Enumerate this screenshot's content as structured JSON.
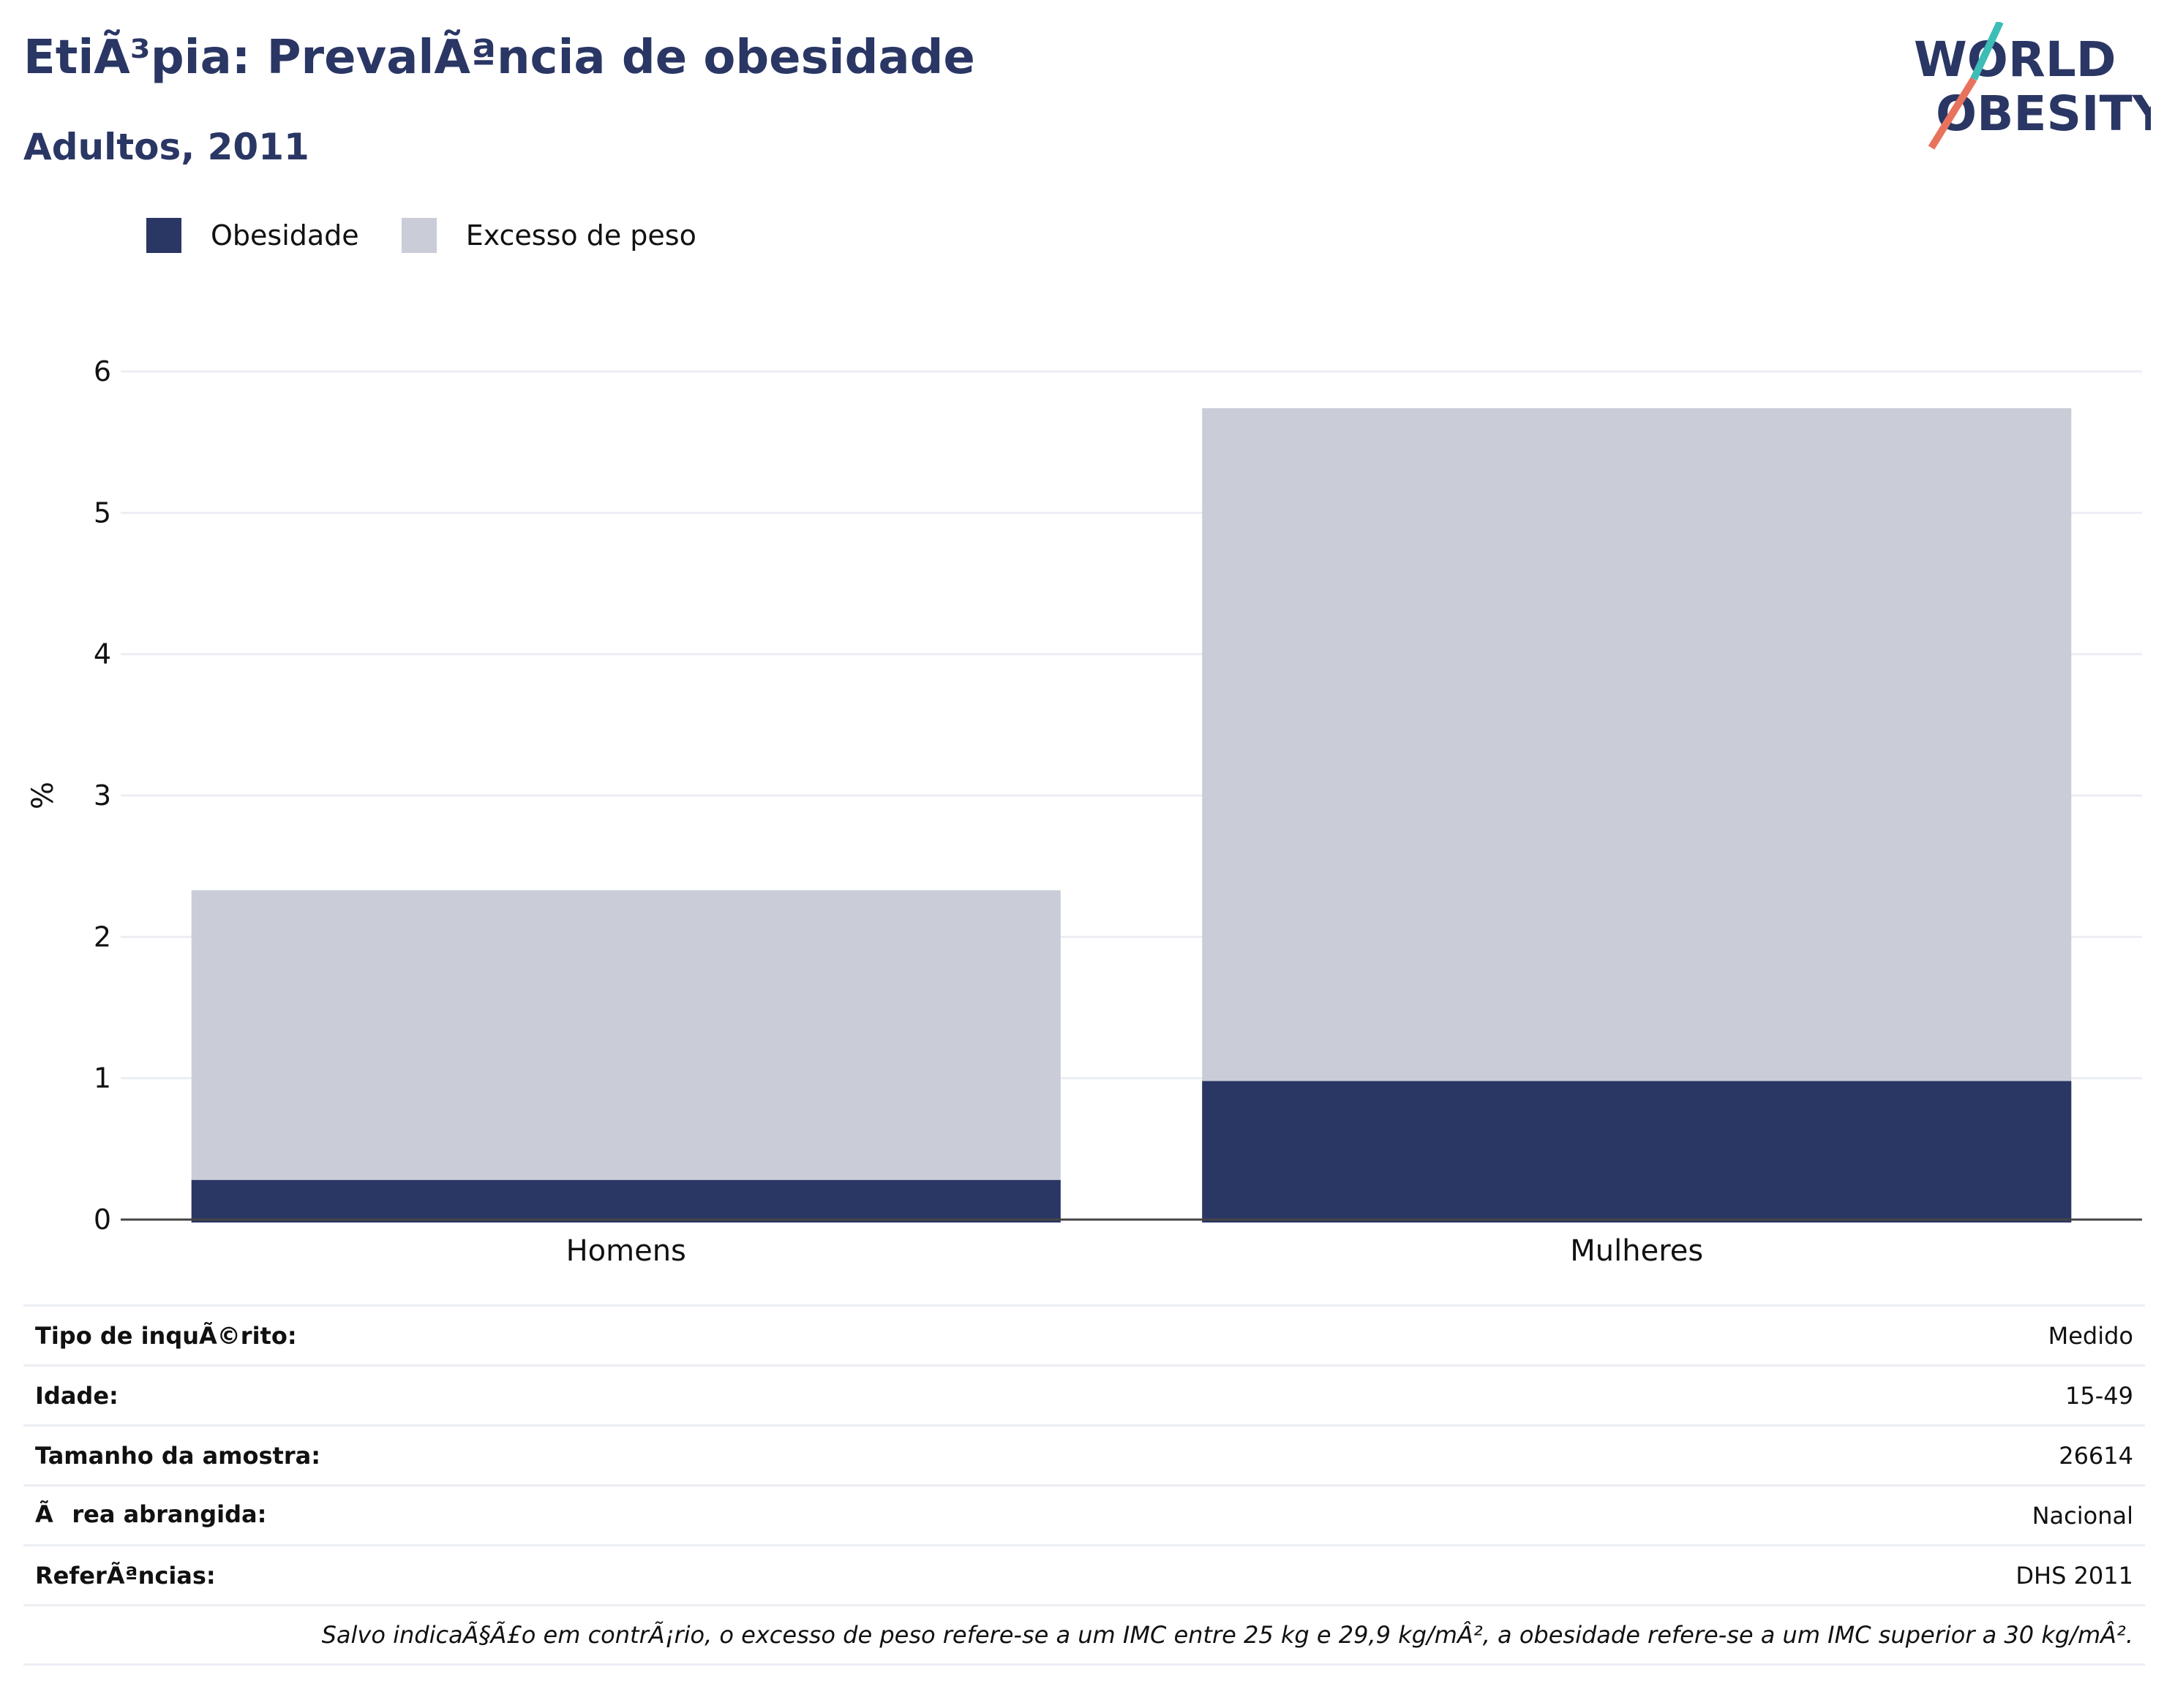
{
  "header": {
    "title": "EtiÃ³pia: PrevalÃªncia de obesidade",
    "subtitle": "Adultos, 2011"
  },
  "logo": {
    "line1": "WORLD",
    "line2": "OBESITY",
    "colors": {
      "text": "#2a3664",
      "slash_top": "#3dbdb5",
      "slash_bottom": "#e8735d"
    }
  },
  "legend": [
    {
      "label": "Obesidade",
      "color": "#2a3664"
    },
    {
      "label": "Excesso de peso",
      "color": "#cacdd8"
    }
  ],
  "chart_data": {
    "type": "bar",
    "stacking": "overlay",
    "categories": [
      "Homens",
      "Mulheres"
    ],
    "series": [
      {
        "name": "Excesso de peso",
        "values": [
          2.33,
          5.74
        ],
        "color": "#cacdd8"
      },
      {
        "name": "Obesidade",
        "values": [
          0.28,
          0.98
        ],
        "color": "#2a3664"
      }
    ],
    "title": "EtiÃ³pia: PrevalÃªncia de obesidade",
    "subtitle": "Adultos, 2011",
    "xlabel": "",
    "ylabel": "%",
    "ylim": [
      0,
      6
    ],
    "yticks": [
      0,
      1,
      2,
      3,
      4,
      5,
      6
    ],
    "grid": true,
    "legend_position": "top-left"
  },
  "info_table": {
    "rows": [
      {
        "key": "Tipo de inquÃ©rito:",
        "value": "Medido"
      },
      {
        "key": "Idade:",
        "value": "15-49"
      },
      {
        "key": "Tamanho da amostra:",
        "value": "26614"
      },
      {
        "key": "Ãrea abrangida:",
        "value": "Nacional"
      },
      {
        "key": "ReferÃªncias:",
        "value": "DHS 2011"
      }
    ],
    "note": "Salvo indicaÃ§Ã£o em contrÃ¡rio, o excesso de peso refere-se a um IMC entre 25 kg e 29,9 kg/mÂ², a obesidade refere-se a um IMC superior a 30 kg/mÂ²."
  }
}
